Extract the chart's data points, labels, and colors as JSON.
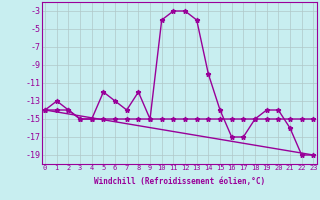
{
  "xlabel": "Windchill (Refroidissement éolien,°C)",
  "bg_color": "#c8eef0",
  "line_color": "#990099",
  "hours": [
    0,
    1,
    2,
    3,
    4,
    5,
    6,
    7,
    8,
    9,
    10,
    11,
    12,
    13,
    14,
    15,
    16,
    17,
    18,
    19,
    20,
    21,
    22,
    23
  ],
  "windchill": [
    -14,
    -13,
    -14,
    -15,
    -15,
    -12,
    -13,
    -14,
    -12,
    -15,
    -4,
    -3,
    -3,
    -4,
    -10,
    -14,
    -17,
    -17,
    -15,
    -14,
    -14,
    -16,
    -19,
    -19
  ],
  "flat_line": [
    -14,
    -14,
    -14,
    -15,
    -15,
    -15,
    -15,
    -15,
    -15,
    -15,
    -15,
    -15,
    -15,
    -15,
    -15,
    -15,
    -15,
    -15,
    -15,
    -15,
    -15,
    -15,
    -15,
    -15
  ],
  "trend_x": [
    0,
    23
  ],
  "trend_y": [
    -14,
    -19
  ],
  "ylim": [
    -20,
    -2
  ],
  "xlim": [
    -0.3,
    23.3
  ],
  "yticks": [
    -3,
    -5,
    -7,
    -9,
    -11,
    -13,
    -15,
    -17,
    -19
  ],
  "grid_color": "#b0c8c8",
  "grid_alpha": 1.0,
  "marker": "*",
  "markersize": 3.5,
  "linewidth": 1.0
}
